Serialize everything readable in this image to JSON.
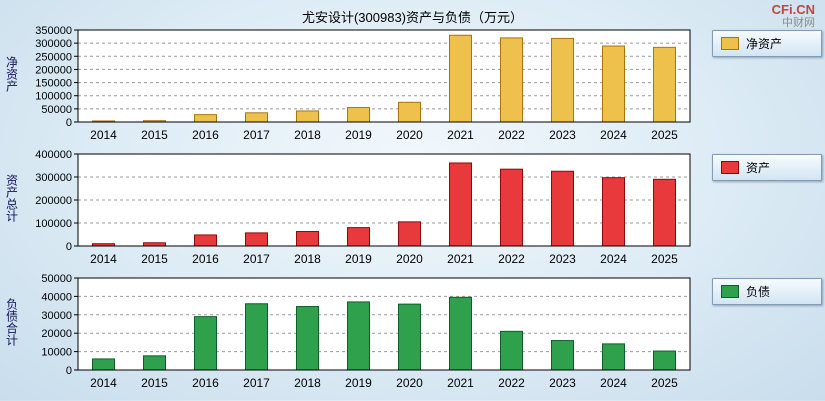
{
  "page": {
    "title": "尤安设计(300983)资产与负债（万元）",
    "watermark": {
      "main": "CFi.CN",
      "sub": "中财网"
    }
  },
  "chart_data": [
    {
      "type": "bar",
      "title": "净资产",
      "ylabel": "净资产",
      "legend": "净资产",
      "color": "#EDC14C",
      "border": "#A87410",
      "categories": [
        "2014",
        "2015",
        "2016",
        "2017",
        "2018",
        "2019",
        "2020",
        "2021",
        "2022",
        "2023",
        "2024",
        "2025"
      ],
      "values": [
        4000,
        5000,
        28000,
        35000,
        42000,
        55000,
        75000,
        330000,
        320000,
        318000,
        289000,
        284000
      ],
      "ylim": [
        0,
        350000
      ],
      "ytick": 50000,
      "grid": true,
      "legend_position": "right"
    },
    {
      "type": "bar",
      "title": "资产总计",
      "ylabel": "资产总计",
      "legend": "资产",
      "color": "#E8393C",
      "border": "#8B0A0A",
      "categories": [
        "2014",
        "2015",
        "2016",
        "2017",
        "2018",
        "2019",
        "2020",
        "2021",
        "2022",
        "2023",
        "2024",
        "2025"
      ],
      "values": [
        10000,
        14000,
        48000,
        57000,
        63000,
        80000,
        105000,
        361000,
        334000,
        325000,
        297000,
        290000
      ],
      "ylim": [
        0,
        400000
      ],
      "ytick": 100000,
      "grid": true,
      "legend_position": "right"
    },
    {
      "type": "bar",
      "title": "负债合计",
      "ylabel": "负债合计",
      "legend": "负债",
      "color": "#2FA14D",
      "border": "#0E5D2B",
      "categories": [
        "2014",
        "2015",
        "2016",
        "2017",
        "2018",
        "2019",
        "2020",
        "2021",
        "2022",
        "2023",
        "2024",
        "2025"
      ],
      "values": [
        6000,
        7700,
        29000,
        36000,
        34500,
        37000,
        35800,
        39500,
        21000,
        16000,
        14200,
        10300
      ],
      "ylim": [
        0,
        50000
      ],
      "ytick": 10000,
      "grid": true,
      "legend_position": "right"
    }
  ]
}
